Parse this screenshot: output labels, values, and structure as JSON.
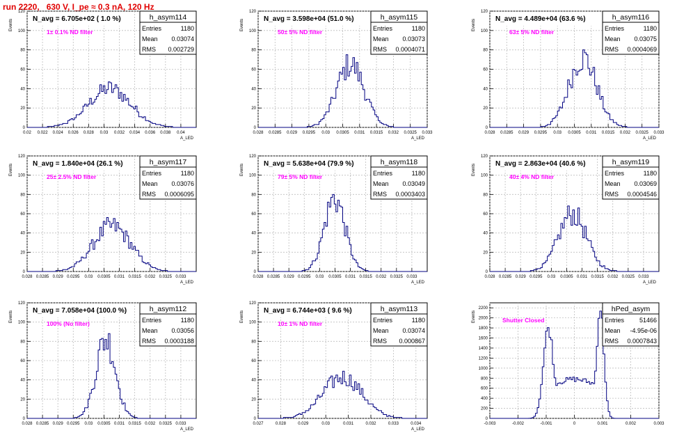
{
  "page": {
    "title": "run 2220,   630 V, I_pe ≈ 0.3 nA, 120 Hz",
    "colors": {
      "title": "#e00000",
      "histogram": "#000080",
      "note": "#ff00ff",
      "grid": "#bdbdbd",
      "frame": "#000000"
    }
  },
  "chart_data": [
    {
      "type": "histogram",
      "name": "h_asym114",
      "title": "N_avg = 6.705e+02 ( 1.0 %)",
      "note": "1± 0.1% ND filter",
      "stats": [
        [
          "Entries",
          "1180"
        ],
        [
          "Mean",
          "0.03074"
        ],
        [
          "RMS",
          "0.002729"
        ]
      ],
      "xlabel": "A_LED",
      "ylabel": "Events",
      "xlim": [
        0.02,
        0.042
      ],
      "ylim": [
        0,
        120
      ],
      "xticks": [
        "0.02",
        "0.022",
        "0.024",
        "0.026",
        "0.028",
        "0.03",
        "0.032",
        "0.034",
        "0.036",
        "0.038",
        "0.04"
      ],
      "yticks": [
        "0",
        "20",
        "40",
        "60",
        "80",
        "100",
        "120"
      ],
      "dist": {
        "mean": 0.03074,
        "rms": 0.002729,
        "peak": 40,
        "x_from": 0.0215,
        "x_to": 0.039
      }
    },
    {
      "type": "histogram",
      "name": "h_asym115",
      "title": "N_avg = 3.598e+04 (51.0 %)",
      "note": "50± 5% ND filter",
      "stats": [
        [
          "Entries",
          "1180"
        ],
        [
          "Mean",
          "0.03073"
        ],
        [
          "RMS",
          "0.0004071"
        ]
      ],
      "xlabel": "A_LED",
      "ylabel": "Events",
      "xlim": [
        0.028,
        0.033
      ],
      "ylim": [
        0,
        120
      ],
      "xticks": [
        "0.028",
        "0.0285",
        "0.029",
        "0.0295",
        "0.03",
        "0.0305",
        "0.031",
        "0.0315",
        "0.032",
        "0.0325",
        "0.033"
      ],
      "yticks": [
        "0",
        "20",
        "40",
        "60",
        "80",
        "100",
        "120"
      ],
      "dist": {
        "mean": 0.03073,
        "rms": 0.0004071,
        "peak": 65,
        "x_from": 0.0294,
        "x_to": 0.0323
      }
    },
    {
      "type": "histogram",
      "name": "h_asym116",
      "title": "N_avg = 4.489e+04 (63.6 %)",
      "note": "63± 5% ND filter",
      "stats": [
        [
          "Entries",
          "1180"
        ],
        [
          "Mean",
          "0.03075"
        ],
        [
          "RMS",
          "0.0004069"
        ]
      ],
      "xlabel": "A_LED",
      "ylabel": "Events",
      "xlim": [
        0.028,
        0.033
      ],
      "ylim": [
        0,
        120
      ],
      "xticks": [
        "0.028",
        "0.0285",
        "0.029",
        "0.0295",
        "0.03",
        "0.0305",
        "0.031",
        "0.0315",
        "0.032",
        "0.0325",
        "0.033"
      ],
      "yticks": [
        "0",
        "20",
        "40",
        "60",
        "80",
        "100",
        "120"
      ],
      "dist": {
        "mean": 0.03075,
        "rms": 0.0004069,
        "peak": 72,
        "x_from": 0.0294,
        "x_to": 0.0322
      }
    },
    {
      "type": "histogram",
      "name": "h_asym117",
      "title": "N_avg = 1.840e+04 (26.1 %)",
      "note": "25± 2.5% ND filter",
      "stats": [
        [
          "Entries",
          "1180"
        ],
        [
          "Mean",
          "0.03076"
        ],
        [
          "RMS",
          "0.0006095"
        ]
      ],
      "xlabel": "A_LED",
      "ylabel": "Events",
      "xlim": [
        0.028,
        0.0335
      ],
      "ylim": [
        0,
        120
      ],
      "xticks": [
        "0.028",
        "0.0285",
        "0.029",
        "0.0295",
        "0.03",
        "0.0305",
        "0.031",
        "0.0315",
        "0.032",
        "0.0325",
        "0.033"
      ],
      "yticks": [
        "0",
        "20",
        "40",
        "60",
        "80",
        "100",
        "120"
      ],
      "dist": {
        "mean": 0.03076,
        "rms": 0.0006095,
        "peak": 47,
        "x_from": 0.0288,
        "x_to": 0.0327
      }
    },
    {
      "type": "histogram",
      "name": "h_asym118",
      "title": "N_avg = 5.638e+04 (79.9 %)",
      "note": "79± 5% ND filter",
      "stats": [
        [
          "Entries",
          "1180"
        ],
        [
          "Mean",
          "0.03049"
        ],
        [
          "RMS",
          "0.0003403"
        ]
      ],
      "xlabel": "A_LED",
      "ylabel": "Events",
      "xlim": [
        0.028,
        0.0335
      ],
      "ylim": [
        0,
        120
      ],
      "xticks": [
        "0.028",
        "0.0285",
        "0.029",
        "0.0295",
        "0.03",
        "0.0305",
        "0.031",
        "0.0315",
        "0.032",
        "0.0325",
        "0.033"
      ],
      "yticks": [
        "0",
        "20",
        "40",
        "60",
        "80",
        "100",
        "120"
      ],
      "dist": {
        "mean": 0.03049,
        "rms": 0.0003403,
        "peak": 76,
        "x_from": 0.0293,
        "x_to": 0.0318
      }
    },
    {
      "type": "histogram",
      "name": "h_asym119",
      "title": "N_avg = 2.863e+04 (40.6 %)",
      "note": "40± 4% ND filter",
      "stats": [
        [
          "Entries",
          "1180"
        ],
        [
          "Mean",
          "0.03069"
        ],
        [
          "RMS",
          "0.0004546"
        ]
      ],
      "xlabel": "A_LED",
      "ylabel": "Events",
      "xlim": [
        0.028,
        0.0335
      ],
      "ylim": [
        0,
        120
      ],
      "xticks": [
        "0.028",
        "0.0285",
        "0.029",
        "0.0295",
        "0.03",
        "0.0305",
        "0.031",
        "0.0315",
        "0.032",
        "0.0325",
        "0.033"
      ],
      "yticks": [
        "0",
        "20",
        "40",
        "60",
        "80",
        "100",
        "120"
      ],
      "dist": {
        "mean": 0.03069,
        "rms": 0.0004546,
        "peak": 60,
        "x_from": 0.0292,
        "x_to": 0.0323
      }
    },
    {
      "type": "histogram",
      "name": "h_asym112",
      "title": "N_avg = 7.058e+04 (100.0 %)",
      "note": "100% (No filter)",
      "stats": [
        [
          "Entries",
          "1180"
        ],
        [
          "Mean",
          "0.03056"
        ],
        [
          "RMS",
          "0.0003188"
        ]
      ],
      "xlabel": "A_LED",
      "ylabel": "Events",
      "xlim": [
        0.028,
        0.0335
      ],
      "ylim": [
        0,
        120
      ],
      "xticks": [
        "0.028",
        "0.0285",
        "0.029",
        "0.0295",
        "0.03",
        "0.0305",
        "0.031",
        "0.0315",
        "0.032",
        "0.0325",
        "0.033"
      ],
      "yticks": [
        "0",
        "20",
        "40",
        "60",
        "80",
        "100",
        "120"
      ],
      "dist": {
        "mean": 0.03056,
        "rms": 0.0003188,
        "peak": 83,
        "x_from": 0.0294,
        "x_to": 0.0318
      }
    },
    {
      "type": "histogram",
      "name": "h_asym113",
      "title": "N_avg = 6.744e+03 ( 9.6 %)",
      "note": "10± 1% ND filter",
      "stats": [
        [
          "Entries",
          "1180"
        ],
        [
          "Mean",
          "0.03074"
        ],
        [
          "RMS",
          "0.000867"
        ]
      ],
      "xlabel": "A_LED",
      "ylabel": "Events",
      "xlim": [
        0.027,
        0.0345
      ],
      "ylim": [
        0,
        120
      ],
      "xticks": [
        "0.027",
        "0.028",
        "0.029",
        "0.03",
        "0.031",
        "0.032",
        "0.033",
        "0.034"
      ],
      "yticks": [
        "0",
        "20",
        "40",
        "60",
        "80",
        "100",
        "120"
      ],
      "dist": {
        "mean": 0.03074,
        "rms": 0.000867,
        "peak": 43,
        "x_from": 0.0278,
        "x_to": 0.0336
      }
    },
    {
      "type": "histogram",
      "name": "hPed_asym",
      "title": "",
      "note": "Shutter Closed",
      "stats": [
        [
          "Entries",
          "51466"
        ],
        [
          "Mean",
          "-4.95e-06"
        ],
        [
          "RMS",
          "0.0007843"
        ]
      ],
      "xlabel": "",
      "ylabel": "Events",
      "xlim": [
        -0.003,
        0.003
      ],
      "ylim": [
        0,
        2300
      ],
      "xticks": [
        "-0.003",
        "-0.002",
        "-0.001",
        "0",
        "0.001",
        "0.002",
        "0.003"
      ],
      "yticks": [
        "0",
        "200",
        "400",
        "600",
        "800",
        "1000",
        "1200",
        "1400",
        "1600",
        "1800",
        "2000",
        "2200"
      ],
      "dist": {
        "bimodal": [
          {
            "mean": -0.00092,
            "rms": 0.00018,
            "peak": 1800
          },
          {
            "mean": 0.00092,
            "rms": 0.00013,
            "peak": 2200
          }
        ],
        "plateau": 720,
        "x_from": -0.0016,
        "x_to": 0.0016
      }
    }
  ]
}
